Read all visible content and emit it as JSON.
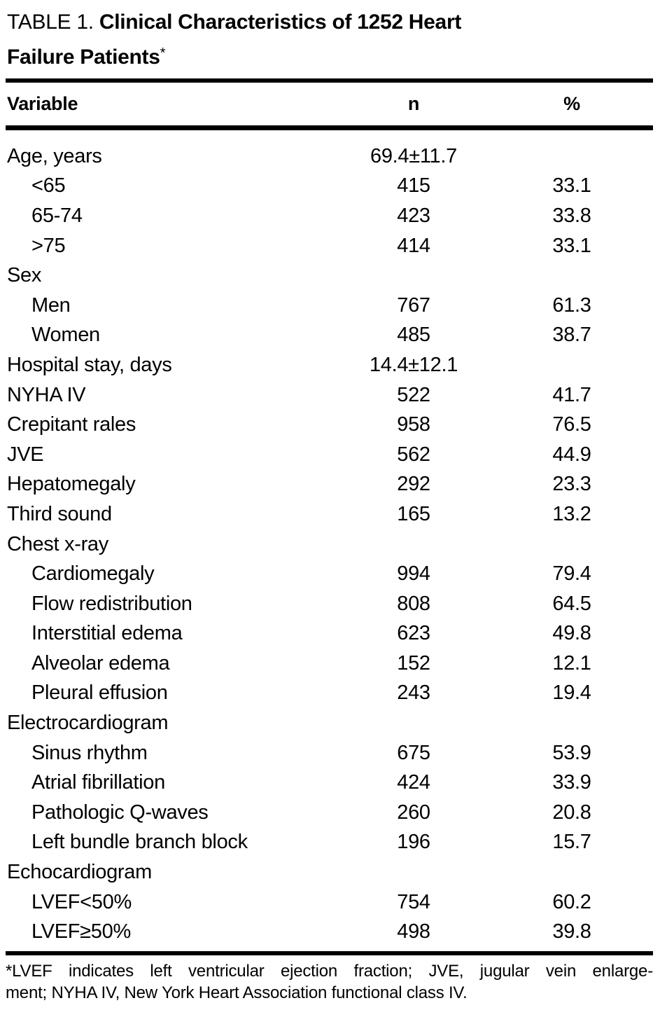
{
  "title": {
    "prefix": "TABLE 1.",
    "line1": "Clinical Characteristics of 1252 Heart",
    "line2": "Failure Patients",
    "footnote_marker": "*"
  },
  "table": {
    "columns": [
      "Variable",
      "n",
      "%"
    ],
    "rows": [
      {
        "label": "Age, years",
        "indent": false,
        "n": "69.4±11.7",
        "pct": ""
      },
      {
        "label": "<65",
        "indent": true,
        "n": "415",
        "pct": "33.1"
      },
      {
        "label": "65-74",
        "indent": true,
        "n": "423",
        "pct": "33.8"
      },
      {
        "label": ">75",
        "indent": true,
        "n": "414",
        "pct": "33.1"
      },
      {
        "label": "Sex",
        "indent": false,
        "n": "",
        "pct": ""
      },
      {
        "label": "Men",
        "indent": true,
        "n": "767",
        "pct": "61.3"
      },
      {
        "label": "Women",
        "indent": true,
        "n": "485",
        "pct": "38.7"
      },
      {
        "label": "Hospital stay, days",
        "indent": false,
        "n": "14.4±12.1",
        "pct": ""
      },
      {
        "label": "NYHA IV",
        "indent": false,
        "n": "522",
        "pct": "41.7"
      },
      {
        "label": "Crepitant rales",
        "indent": false,
        "n": "958",
        "pct": "76.5"
      },
      {
        "label": "JVE",
        "indent": false,
        "n": "562",
        "pct": "44.9"
      },
      {
        "label": "Hepatomegaly",
        "indent": false,
        "n": "292",
        "pct": "23.3"
      },
      {
        "label": "Third sound",
        "indent": false,
        "n": "165",
        "pct": "13.2"
      },
      {
        "label": "Chest x-ray",
        "indent": false,
        "n": "",
        "pct": ""
      },
      {
        "label": "Cardiomegaly",
        "indent": true,
        "n": "994",
        "pct": "79.4"
      },
      {
        "label": "Flow redistribution",
        "indent": true,
        "n": "808",
        "pct": "64.5"
      },
      {
        "label": "Interstitial edema",
        "indent": true,
        "n": "623",
        "pct": "49.8"
      },
      {
        "label": "Alveolar edema",
        "indent": true,
        "n": "152",
        "pct": "12.1"
      },
      {
        "label": "Pleural effusion",
        "indent": true,
        "n": "243",
        "pct": "19.4"
      },
      {
        "label": "Electrocardiogram",
        "indent": false,
        "n": "",
        "pct": ""
      },
      {
        "label": "Sinus rhythm",
        "indent": true,
        "n": "675",
        "pct": "53.9"
      },
      {
        "label": "Atrial fibrillation",
        "indent": true,
        "n": "424",
        "pct": "33.9"
      },
      {
        "label": "Pathologic Q-waves",
        "indent": true,
        "n": "260",
        "pct": "20.8"
      },
      {
        "label": "Left bundle branch block",
        "indent": true,
        "n": "196",
        "pct": "15.7"
      },
      {
        "label": "Echocardiogram",
        "indent": false,
        "n": "",
        "pct": ""
      },
      {
        "label": "LVEF<50%",
        "indent": true,
        "n": "754",
        "pct": "60.2"
      },
      {
        "label": "LVEF≥50%",
        "indent": true,
        "n": "498",
        "pct": "39.8"
      }
    ]
  },
  "footnote": {
    "line1": "*LVEF indicates left ventricular ejection fraction; JVE, jugular vein enlarge-",
    "line2": "ment; NYHA IV, New York Heart Association functional class IV."
  },
  "colors": {
    "background": "#ffffff",
    "text": "#000000",
    "rule": "#000000"
  }
}
